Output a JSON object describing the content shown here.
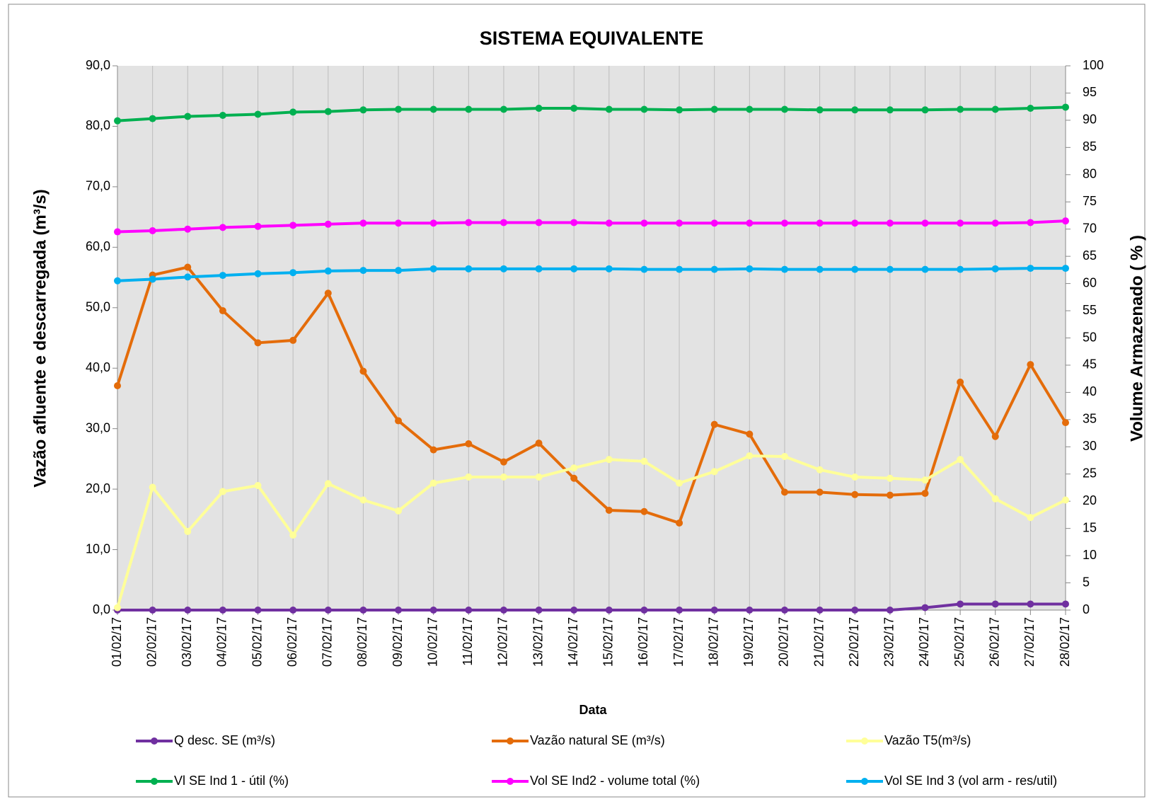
{
  "chart_data": {
    "type": "line",
    "title": "SISTEMA EQUIVALENTE",
    "x_label": "Data",
    "y_label": "Vazão afluente e descarregada (m³/s)",
    "y2_label": "Volume Armazenado ( % )",
    "categories": [
      "01/02/17",
      "02/02/17",
      "03/02/17",
      "04/02/17",
      "05/02/17",
      "06/02/17",
      "07/02/17",
      "08/02/17",
      "09/02/17",
      "10/02/17",
      "11/02/17",
      "12/02/17",
      "13/02/17",
      "14/02/17",
      "15/02/17",
      "16/02/17",
      "17/02/17",
      "18/02/17",
      "19/02/17",
      "20/02/17",
      "21/02/17",
      "22/02/17",
      "23/02/17",
      "24/02/17",
      "25/02/17",
      "26/02/17",
      "27/02/17",
      "28/02/17"
    ],
    "ylim": [
      0,
      90
    ],
    "yticks": [
      {
        "value": 0,
        "label": "0,0"
      },
      {
        "value": 10,
        "label": "10,0"
      },
      {
        "value": 20,
        "label": "20,0"
      },
      {
        "value": 30,
        "label": "30,0"
      },
      {
        "value": 40,
        "label": "40,0"
      },
      {
        "value": 50,
        "label": "50,0"
      },
      {
        "value": 60,
        "label": "60,0"
      },
      {
        "value": 70,
        "label": "70,0"
      },
      {
        "value": 80,
        "label": "80,0"
      },
      {
        "value": 90,
        "label": "90,0"
      }
    ],
    "y2lim": [
      0,
      100
    ],
    "y2ticks": [
      0,
      5,
      10,
      15,
      20,
      25,
      30,
      35,
      40,
      45,
      50,
      55,
      60,
      65,
      70,
      75,
      80,
      85,
      90,
      95,
      100
    ],
    "grid": true,
    "legend": "bottom",
    "series": [
      {
        "name": "Q desc. SE (m³/s)",
        "color": "#7030a0",
        "values": [
          0,
          0,
          0,
          0,
          0,
          0,
          0,
          0,
          0,
          0,
          0,
          0,
          0,
          0,
          0,
          0,
          0,
          0,
          0,
          0,
          0,
          0,
          0,
          0.4,
          1.0,
          1.0,
          1.0,
          1.0
        ]
      },
      {
        "name": "Vazão natural SE (m³/s)",
        "color": "#e46c0a",
        "values": [
          37.1,
          55.4,
          56.7,
          49.5,
          44.2,
          44.6,
          52.4,
          39.5,
          31.3,
          26.5,
          27.5,
          24.5,
          27.6,
          21.8,
          16.5,
          16.3,
          14.4,
          30.7,
          29.1,
          19.5,
          19.5,
          19.1,
          19.0,
          19.3,
          37.7,
          28.7,
          40.6,
          31.0
        ]
      },
      {
        "name": "Vazão T5(m³/s)",
        "color": "#ffff99",
        "values": [
          0.4,
          20.3,
          13.0,
          19.6,
          20.6,
          12.4,
          20.9,
          18.2,
          16.4,
          21.0,
          22.0,
          22.0,
          22.0,
          23.5,
          24.9,
          24.6,
          21.0,
          22.9,
          25.5,
          25.4,
          23.2,
          22.0,
          21.8,
          21.5,
          24.9,
          18.4,
          15.3,
          18.2
        ]
      },
      {
        "name": "Vl SE Ind 1 - útil (%)",
        "color": "#00b050",
        "axis": "y2",
        "values": [
          89.9,
          90.3,
          90.7,
          90.9,
          91.1,
          91.5,
          91.6,
          91.9,
          92.0,
          92.0,
          92.0,
          92.0,
          92.2,
          92.2,
          92.0,
          92.0,
          91.9,
          92.0,
          92.0,
          92.0,
          91.9,
          91.9,
          91.9,
          91.9,
          92.0,
          92.0,
          92.2,
          92.4
        ]
      },
      {
        "name": "Vol SE Ind2 - volume total (%)",
        "color": "#ff00ff",
        "axis": "y2",
        "values": [
          69.5,
          69.7,
          70.0,
          70.3,
          70.5,
          70.7,
          70.9,
          71.1,
          71.1,
          71.1,
          71.2,
          71.2,
          71.2,
          71.2,
          71.1,
          71.1,
          71.1,
          71.1,
          71.1,
          71.1,
          71.1,
          71.1,
          71.1,
          71.1,
          71.1,
          71.1,
          71.2,
          71.5
        ]
      },
      {
        "name": "Vol SE Ind 3 (vol arm - res/util)",
        "color": "#00b0f0",
        "axis": "y2",
        "values": [
          60.5,
          60.8,
          61.2,
          61.5,
          61.8,
          62.0,
          62.3,
          62.4,
          62.4,
          62.7,
          62.7,
          62.7,
          62.7,
          62.7,
          62.7,
          62.6,
          62.6,
          62.6,
          62.7,
          62.6,
          62.6,
          62.6,
          62.6,
          62.6,
          62.6,
          62.7,
          62.8,
          62.8
        ]
      }
    ]
  }
}
